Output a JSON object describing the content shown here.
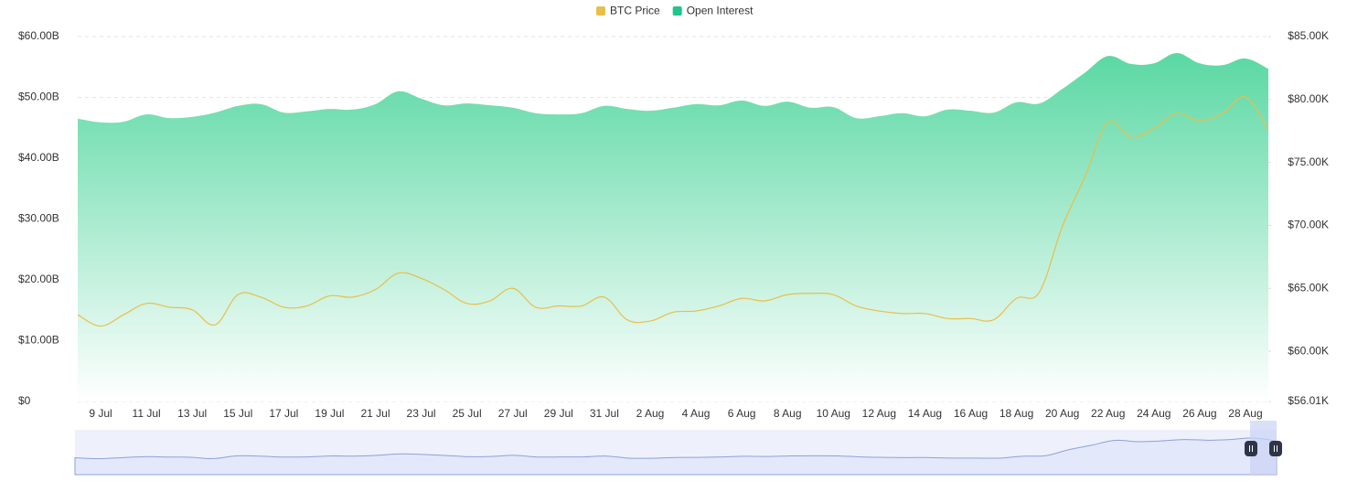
{
  "chart_data": {
    "type": "area-line",
    "categories": [
      null,
      "9 Jul",
      null,
      "11 Jul",
      null,
      "13 Jul",
      null,
      "15 Jul",
      null,
      "17 Jul",
      null,
      "19 Jul",
      null,
      "21 Jul",
      null,
      "23 Jul",
      null,
      "25 Jul",
      null,
      "27 Jul",
      null,
      "29 Jul",
      null,
      "31 Jul",
      null,
      "2 Aug",
      null,
      "4 Aug",
      null,
      "6 Aug",
      null,
      "8 Aug",
      null,
      "10 Aug",
      null,
      "12 Aug",
      null,
      "14 Aug",
      null,
      "16 Aug",
      null,
      "18 Aug",
      null,
      "20 Aug",
      null,
      "22 Aug",
      null,
      "24 Aug",
      null,
      "26 Aug",
      null,
      "28 Aug",
      null
    ],
    "series": [
      {
        "name": "BTC Price",
        "color": "#e8bf4a",
        "axis": "y2",
        "values": [
          62.9,
          62.0,
          62.9,
          63.8,
          63.5,
          63.3,
          62.1,
          64.5,
          64.3,
          63.5,
          63.6,
          64.4,
          64.3,
          64.9,
          66.2,
          65.8,
          64.9,
          63.8,
          64.0,
          65.0,
          63.5,
          63.6,
          63.6,
          64.3,
          62.5,
          62.4,
          63.1,
          63.2,
          63.6,
          64.2,
          64.0,
          64.5,
          64.6,
          64.5,
          63.6,
          63.2,
          63.0,
          63.0,
          62.6,
          62.6,
          62.5,
          64.2,
          64.7,
          69.9,
          73.9,
          78.2,
          77.0,
          77.7,
          78.9,
          78.3,
          78.9,
          80.2,
          77.6
        ]
      },
      {
        "name": "Open Interest",
        "color": "#1ec58f",
        "values": [
          46.5,
          45.9,
          46.0,
          47.2,
          46.6,
          46.8,
          47.5,
          48.6,
          48.9,
          47.5,
          47.7,
          48.1,
          48.0,
          48.9,
          51.0,
          49.8,
          48.7,
          49.0,
          48.7,
          48.3,
          47.4,
          47.2,
          47.4,
          48.6,
          48.1,
          47.8,
          48.3,
          48.9,
          48.7,
          49.5,
          48.6,
          49.3,
          48.3,
          48.4,
          46.6,
          46.9,
          47.4,
          46.9,
          48.0,
          47.8,
          47.5,
          49.2,
          49.0,
          51.4,
          54.1,
          56.8,
          55.5,
          55.6,
          57.3,
          55.6,
          55.3,
          56.4,
          54.7
        ]
      }
    ],
    "ylim": [
      0,
      60
    ],
    "yticks": [
      {
        "value": 0,
        "label": "$0"
      },
      {
        "value": 10,
        "label": "$10.00B"
      },
      {
        "value": 20,
        "label": "$20.00B"
      },
      {
        "value": 30,
        "label": "$30.00B"
      },
      {
        "value": 40,
        "label": "$40.00B"
      },
      {
        "value": 50,
        "label": "$50.00B"
      },
      {
        "value": 60,
        "label": "$60.00B"
      }
    ],
    "y2lim": [
      56.01,
      85
    ],
    "y2ticks": [
      {
        "value": 56.01,
        "label": "$56.01K"
      },
      {
        "value": 60,
        "label": "$60.00K"
      },
      {
        "value": 65,
        "label": "$65.00K"
      },
      {
        "value": 70,
        "label": "$70.00K"
      },
      {
        "value": 75,
        "label": "$75.00K"
      },
      {
        "value": 80,
        "label": "$80.00K"
      },
      {
        "value": 85,
        "label": "$85.00K"
      }
    ],
    "grid": true,
    "legend": "top"
  }
}
